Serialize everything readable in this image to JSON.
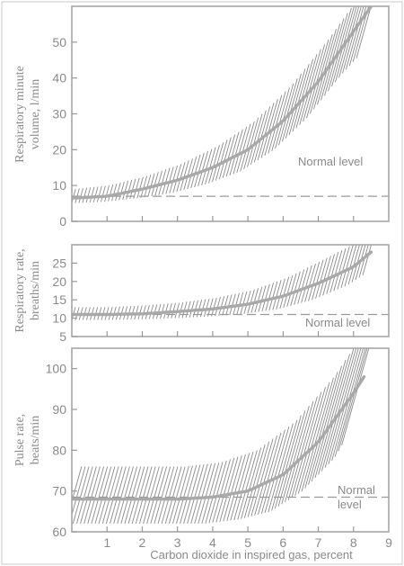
{
  "chart_data": [
    {
      "type": "line",
      "ylabel": [
        "Respiratory minute",
        "volume, l/min"
      ],
      "x": [
        0,
        1,
        2,
        3,
        4,
        5,
        6,
        7,
        8,
        8.5
      ],
      "values": [
        6.5,
        7,
        9,
        11.5,
        15,
        20,
        28,
        39,
        53,
        60
      ],
      "band_lower": [
        5,
        5.5,
        6.5,
        8,
        10.5,
        14,
        20,
        29,
        41,
        46
      ],
      "band_upper": [
        9,
        10,
        12.5,
        16,
        21,
        28,
        38,
        51,
        65,
        72
      ],
      "normal_level": 7,
      "normal_label": [
        "Normal level"
      ],
      "ylim": [
        0,
        60
      ],
      "yticks": [
        0,
        10,
        20,
        30,
        40,
        50
      ],
      "xlim": [
        0,
        9
      ],
      "grid": false
    },
    {
      "type": "line",
      "ylabel": [
        "Respiratory rate,",
        "breaths/min"
      ],
      "x": [
        0,
        1,
        2,
        3,
        4,
        5,
        6,
        7,
        8,
        8.5
      ],
      "values": [
        11,
        11,
        11.2,
        11.8,
        12.5,
        13.8,
        16,
        19.5,
        24,
        28
      ],
      "band_lower": [
        9.5,
        9.5,
        9.7,
        10,
        10.5,
        11.2,
        12.5,
        15,
        19,
        22
      ],
      "band_upper": [
        13,
        13,
        13.5,
        14.2,
        15.5,
        17.5,
        21,
        26,
        31,
        35
      ],
      "normal_level": 11,
      "normal_label": [
        "Normal level"
      ],
      "ylim": [
        5,
        30
      ],
      "yticks": [
        5,
        10,
        15,
        20,
        25
      ],
      "xlim": [
        0,
        9
      ],
      "grid": false
    },
    {
      "type": "line",
      "ylabel": [
        "Pulse rate,",
        "beats/min"
      ],
      "x": [
        0,
        1,
        2,
        3,
        4,
        5,
        6,
        7,
        8,
        8.3
      ],
      "values": [
        68,
        68,
        68,
        68,
        68.5,
        70,
        74,
        82,
        94,
        98
      ],
      "band_lower": [
        62,
        62,
        62,
        62,
        62,
        63,
        65,
        70,
        78,
        82
      ],
      "band_upper": [
        76,
        76,
        76,
        76,
        77,
        80,
        87,
        98,
        112,
        118
      ],
      "normal_level": 68.5,
      "normal_label": [
        "Normal",
        "level"
      ],
      "ylim": [
        60,
        105
      ],
      "yticks": [
        60,
        70,
        80,
        90,
        100
      ],
      "xlim": [
        0,
        9
      ],
      "xticks": [
        1,
        2,
        3,
        4,
        5,
        6,
        7,
        8,
        9
      ],
      "xlabel": "Carbon dioxide in inspired gas, percent",
      "grid": false
    }
  ]
}
